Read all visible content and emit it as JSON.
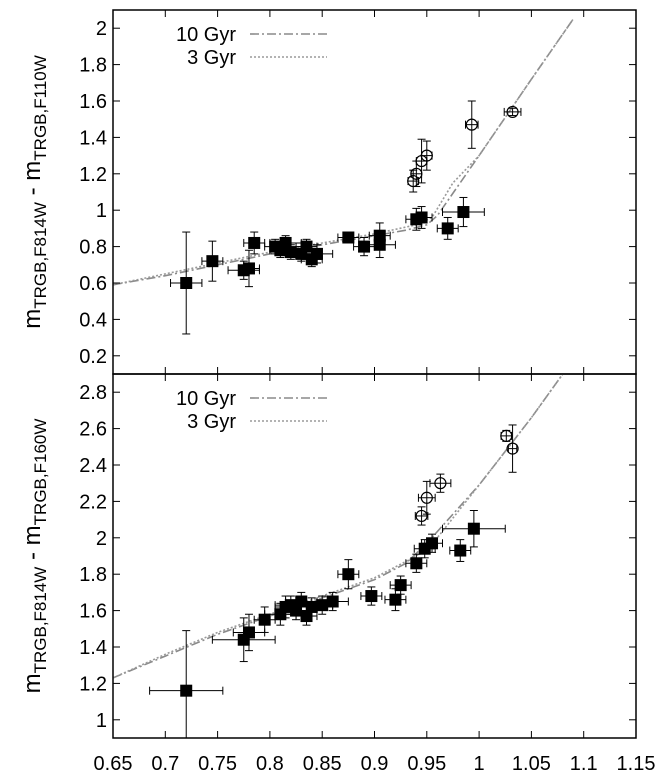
{
  "chart_data": [
    {
      "type": "scatter",
      "panel": "top",
      "ylabel_main": "m",
      "ylabel_sub": "TRGB,F814W",
      "ylabel_mid": " - m",
      "ylabel_sub2": "TRGB,F110W",
      "xlim": [
        0.65,
        1.15
      ],
      "ylim": [
        0.1,
        2.1
      ],
      "yticks": [
        0.2,
        0.4,
        0.6,
        0.8,
        1,
        1.2,
        1.4,
        1.6,
        1.8,
        2
      ],
      "ytick_labels": [
        "0.2",
        "0.4",
        "0.6",
        "0.8",
        "1",
        "1.2",
        "1.4",
        "1.6",
        "1.8",
        "2"
      ],
      "legend_position": "top-left",
      "series": [
        {
          "name": "10 Gyr",
          "kind": "line",
          "style": "dash-dot",
          "color": "#8a8a8a",
          "x": [
            0.65,
            0.7,
            0.75,
            0.8,
            0.85,
            0.9,
            0.93,
            0.95,
            0.96,
            1.0,
            1.05,
            1.09
          ],
          "y": [
            0.59,
            0.64,
            0.7,
            0.76,
            0.81,
            0.86,
            0.89,
            0.92,
            0.97,
            1.3,
            1.72,
            2.05
          ]
        },
        {
          "name": "3 Gyr",
          "kind": "line",
          "style": "dotted",
          "color": "#9a9a9a",
          "x": [
            0.65,
            0.7,
            0.75,
            0.8,
            0.85,
            0.9,
            0.94,
            0.955,
            0.975,
            1.0,
            1.05,
            1.09
          ],
          "y": [
            0.59,
            0.65,
            0.71,
            0.77,
            0.82,
            0.87,
            0.92,
            0.96,
            1.15,
            1.3,
            1.72,
            2.05
          ]
        },
        {
          "name": "",
          "kind": "points",
          "marker": "filled-square",
          "points": [
            {
              "x": 0.72,
              "y": 0.6,
              "xerr": 0.015,
              "yerr": 0.28
            },
            {
              "x": 0.745,
              "y": 0.72,
              "xerr": 0.01,
              "yerr": 0.11
            },
            {
              "x": 0.775,
              "y": 0.67,
              "xerr": 0.015,
              "yerr": 0.05
            },
            {
              "x": 0.78,
              "y": 0.68,
              "xerr": 0.01,
              "yerr": 0.1
            },
            {
              "x": 0.785,
              "y": 0.82,
              "xerr": 0.01,
              "yerr": 0.06
            },
            {
              "x": 0.805,
              "y": 0.8,
              "xerr": 0.01,
              "yerr": 0.04
            },
            {
              "x": 0.81,
              "y": 0.78,
              "xerr": 0.01,
              "yerr": 0.04
            },
            {
              "x": 0.815,
              "y": 0.82,
              "xerr": 0.015,
              "yerr": 0.04
            },
            {
              "x": 0.82,
              "y": 0.77,
              "xerr": 0.01,
              "yerr": 0.04
            },
            {
              "x": 0.83,
              "y": 0.76,
              "xerr": 0.015,
              "yerr": 0.04
            },
            {
              "x": 0.835,
              "y": 0.8,
              "xerr": 0.01,
              "yerr": 0.04
            },
            {
              "x": 0.84,
              "y": 0.73,
              "xerr": 0.01,
              "yerr": 0.04
            },
            {
              "x": 0.845,
              "y": 0.76,
              "xerr": 0.015,
              "yerr": 0.05
            },
            {
              "x": 0.875,
              "y": 0.85,
              "xerr": 0.01,
              "yerr": 0.03
            },
            {
              "x": 0.89,
              "y": 0.8,
              "xerr": 0.01,
              "yerr": 0.05
            },
            {
              "x": 0.905,
              "y": 0.81,
              "xerr": 0.015,
              "yerr": 0.07
            },
            {
              "x": 0.905,
              "y": 0.86,
              "xerr": 0.01,
              "yerr": 0.07
            },
            {
              "x": 0.94,
              "y": 0.95,
              "xerr": 0.01,
              "yerr": 0.06
            },
            {
              "x": 0.945,
              "y": 0.96,
              "xerr": 0.01,
              "yerr": 0.06
            },
            {
              "x": 0.97,
              "y": 0.9,
              "xerr": 0.01,
              "yerr": 0.06
            },
            {
              "x": 0.985,
              "y": 0.99,
              "xerr": 0.02,
              "yerr": 0.08
            }
          ]
        },
        {
          "name": "",
          "kind": "points",
          "marker": "open-circle",
          "points": [
            {
              "x": 0.937,
              "y": 1.16,
              "xerr": 0.005,
              "yerr": 0.06
            },
            {
              "x": 0.94,
              "y": 1.2,
              "xerr": 0.005,
              "yerr": 0.07
            },
            {
              "x": 0.945,
              "y": 1.27,
              "xerr": 0.005,
              "yerr": 0.12
            },
            {
              "x": 0.95,
              "y": 1.3,
              "xerr": 0.005,
              "yerr": 0.08
            },
            {
              "x": 0.993,
              "y": 1.47,
              "xerr": 0.006,
              "yerr": 0.13
            },
            {
              "x": 1.032,
              "y": 1.54,
              "xerr": 0.008,
              "yerr": 0.02
            }
          ]
        }
      ]
    },
    {
      "type": "scatter",
      "panel": "bottom",
      "xlabel": "",
      "ylabel_main": "m",
      "ylabel_sub": "TRGB,F814W",
      "ylabel_mid": " - m",
      "ylabel_sub2": "TRGB,F160W",
      "xlim": [
        0.65,
        1.15
      ],
      "ylim": [
        0.9,
        2.9
      ],
      "xticks": [
        0.65,
        0.7,
        0.75,
        0.8,
        0.85,
        0.9,
        0.95,
        1,
        1.05,
        1.1,
        1.15
      ],
      "xtick_labels": [
        "0.65",
        "0.7",
        "0.75",
        "0.8",
        "0.85",
        "0.9",
        "0.95",
        "1",
        "1.05",
        "1.1",
        "1.15"
      ],
      "yticks": [
        1,
        1.2,
        1.4,
        1.6,
        1.8,
        2,
        2.2,
        2.4,
        2.6,
        2.8
      ],
      "ytick_labels": [
        "1",
        "1.2",
        "1.4",
        "1.6",
        "1.8",
        "2",
        "2.2",
        "2.4",
        "2.6",
        "2.8"
      ],
      "legend_position": "top-left",
      "series": [
        {
          "name": "10 Gyr",
          "kind": "line",
          "style": "dash-dot",
          "color": "#8a8a8a",
          "x": [
            0.65,
            0.7,
            0.75,
            0.8,
            0.85,
            0.9,
            0.93,
            0.95,
            1.0,
            1.05,
            1.08
          ],
          "y": [
            1.23,
            1.35,
            1.47,
            1.57,
            1.67,
            1.77,
            1.86,
            1.97,
            2.29,
            2.66,
            2.9
          ]
        },
        {
          "name": "3 Gyr",
          "kind": "line",
          "style": "dotted",
          "color": "#9a9a9a",
          "x": [
            0.65,
            0.7,
            0.75,
            0.8,
            0.85,
            0.9,
            0.94,
            0.96,
            1.0,
            1.05,
            1.08
          ],
          "y": [
            1.23,
            1.36,
            1.48,
            1.58,
            1.68,
            1.78,
            1.9,
            2.0,
            2.29,
            2.66,
            2.9
          ]
        },
        {
          "name": "",
          "kind": "points",
          "marker": "filled-square",
          "points": [
            {
              "x": 0.72,
              "y": 1.16,
              "xerr": 0.035,
              "yerr": 0.33
            },
            {
              "x": 0.775,
              "y": 1.44,
              "xerr": 0.03,
              "yerr": 0.12
            },
            {
              "x": 0.78,
              "y": 1.48,
              "xerr": 0.015,
              "yerr": 0.1
            },
            {
              "x": 0.795,
              "y": 1.55,
              "xerr": 0.01,
              "yerr": 0.07
            },
            {
              "x": 0.81,
              "y": 1.58,
              "xerr": 0.015,
              "yerr": 0.06
            },
            {
              "x": 0.815,
              "y": 1.62,
              "xerr": 0.01,
              "yerr": 0.06
            },
            {
              "x": 0.82,
              "y": 1.63,
              "xerr": 0.015,
              "yerr": 0.05
            },
            {
              "x": 0.825,
              "y": 1.6,
              "xerr": 0.01,
              "yerr": 0.05
            },
            {
              "x": 0.83,
              "y": 1.65,
              "xerr": 0.015,
              "yerr": 0.05
            },
            {
              "x": 0.835,
              "y": 1.57,
              "xerr": 0.01,
              "yerr": 0.05
            },
            {
              "x": 0.84,
              "y": 1.62,
              "xerr": 0.015,
              "yerr": 0.05
            },
            {
              "x": 0.85,
              "y": 1.63,
              "xerr": 0.01,
              "yerr": 0.05
            },
            {
              "x": 0.86,
              "y": 1.65,
              "xerr": 0.015,
              "yerr": 0.05
            },
            {
              "x": 0.875,
              "y": 1.8,
              "xerr": 0.01,
              "yerr": 0.08
            },
            {
              "x": 0.897,
              "y": 1.68,
              "xerr": 0.01,
              "yerr": 0.05
            },
            {
              "x": 0.92,
              "y": 1.66,
              "xerr": 0.01,
              "yerr": 0.06
            },
            {
              "x": 0.925,
              "y": 1.74,
              "xerr": 0.01,
              "yerr": 0.05
            },
            {
              "x": 0.94,
              "y": 1.86,
              "xerr": 0.01,
              "yerr": 0.05
            },
            {
              "x": 0.948,
              "y": 1.94,
              "xerr": 0.01,
              "yerr": 0.05
            },
            {
              "x": 0.955,
              "y": 1.97,
              "xerr": 0.01,
              "yerr": 0.05
            },
            {
              "x": 0.982,
              "y": 1.93,
              "xerr": 0.01,
              "yerr": 0.06
            },
            {
              "x": 0.995,
              "y": 2.05,
              "xerr": 0.03,
              "yerr": 0.1
            }
          ]
        },
        {
          "name": "",
          "kind": "points",
          "marker": "open-circle",
          "points": [
            {
              "x": 0.945,
              "y": 2.12,
              "xerr": 0.006,
              "yerr": 0.05
            },
            {
              "x": 0.95,
              "y": 2.22,
              "xerr": 0.008,
              "yerr": 0.09
            },
            {
              "x": 0.963,
              "y": 2.3,
              "xerr": 0.01,
              "yerr": 0.05
            },
            {
              "x": 1.026,
              "y": 2.56,
              "xerr": 0.005,
              "yerr": 0.03
            },
            {
              "x": 1.032,
              "y": 2.49,
              "xerr": 0.004,
              "yerr": 0.13
            }
          ]
        }
      ]
    }
  ]
}
